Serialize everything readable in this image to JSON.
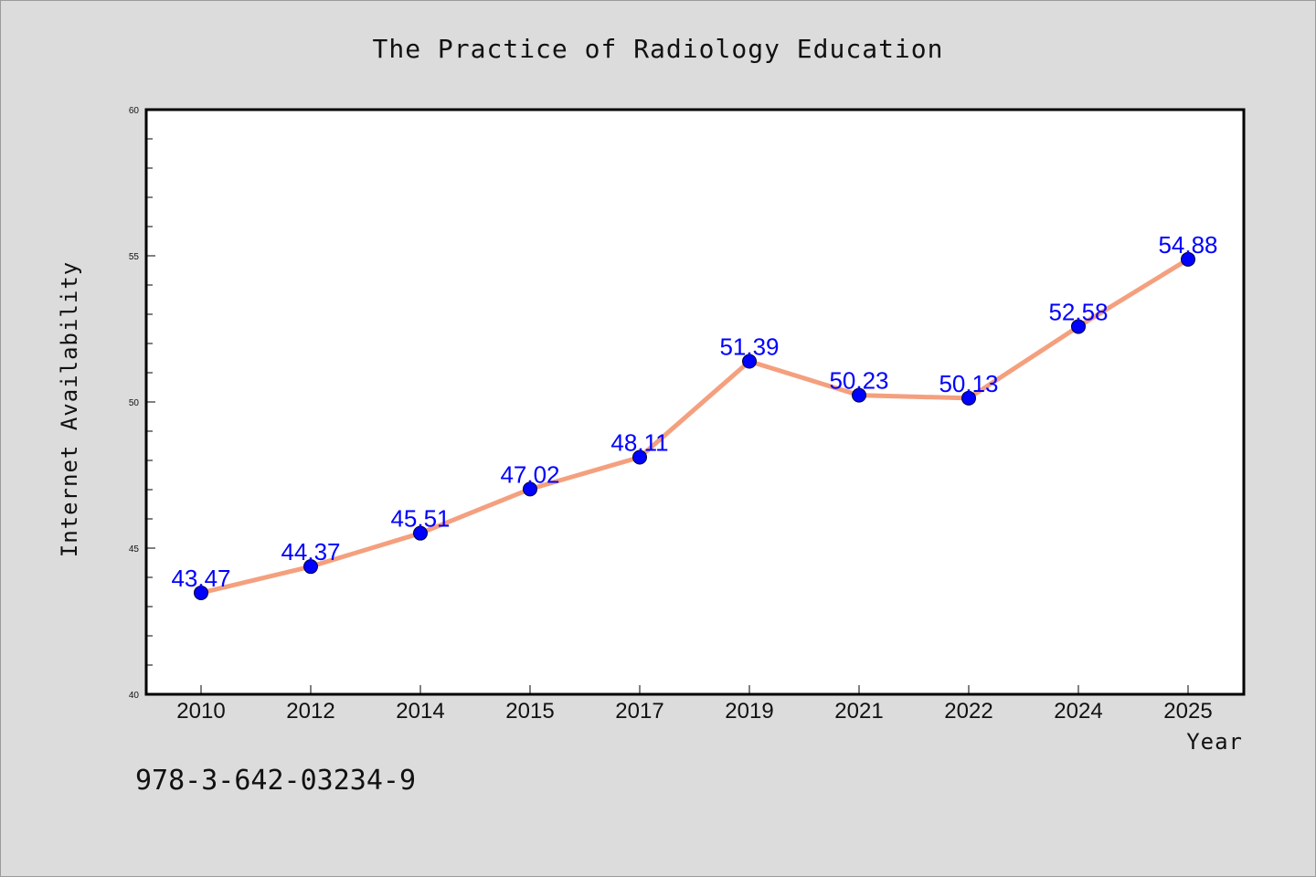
{
  "chart_data": {
    "type": "line",
    "title": "The Practice of Radiology Education",
    "xlabel": "Year",
    "ylabel": "Internet Availability",
    "categories": [
      "2010",
      "2012",
      "2014",
      "2015",
      "2017",
      "2019",
      "2021",
      "2022",
      "2024",
      "2025"
    ],
    "values": [
      43.47,
      44.37,
      45.51,
      47.02,
      48.11,
      51.39,
      50.23,
      50.13,
      52.58,
      54.88
    ],
    "data_labels": [
      "43.47",
      "44.37",
      "45.51",
      "47.02",
      "48.11",
      "51.39",
      "50.23",
      "50.13",
      "52.58",
      "54.88"
    ],
    "ylim": [
      40,
      60
    ],
    "y_ticks": [
      "40",
      "45",
      "50",
      "55",
      "60"
    ],
    "y_tick_values": [
      40,
      45,
      50,
      55,
      60
    ],
    "y_minor_step": 1,
    "grid": false,
    "line_color": "#f4a07e",
    "marker_color": "#0000ff",
    "label_color": "#0000ff",
    "plot_background": "#ffffff",
    "page_background": "#dcdcdc"
  },
  "footnote": "978-3-642-03234-9"
}
